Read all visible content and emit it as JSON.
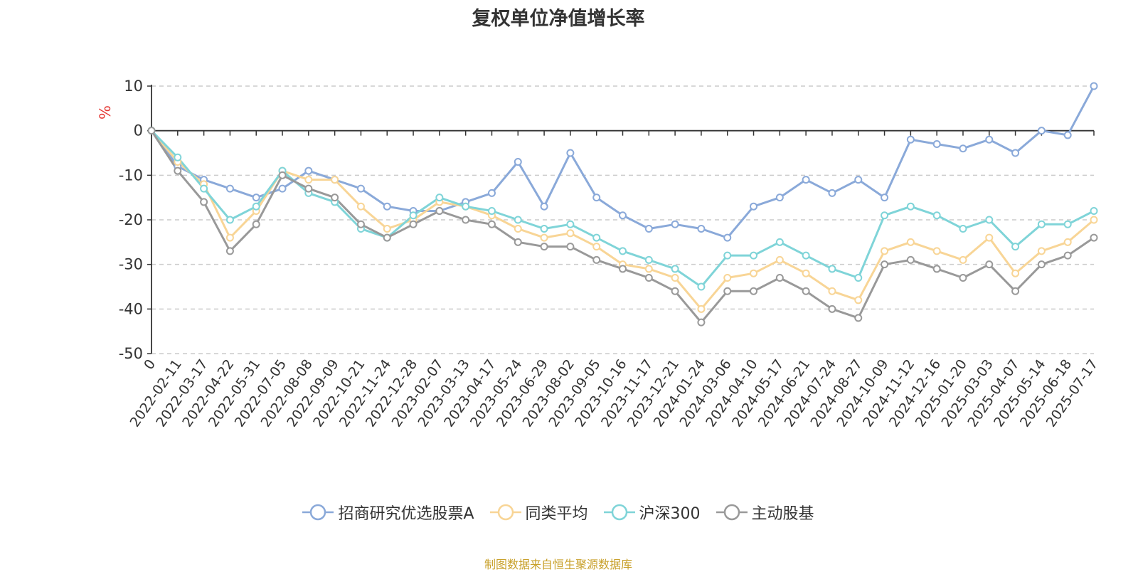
{
  "title": "复权单位净值增长率",
  "source_note": "制图数据来自恒生聚源数据库",
  "chart_data": {
    "type": "line",
    "title": "复权单位净值增长率",
    "ylabel": "%",
    "ylim": [
      -50,
      10
    ],
    "yticks": [
      10,
      0,
      -10,
      -20,
      -30,
      -40,
      -50
    ],
    "y_grid": true,
    "legend_position": "bottom",
    "x_tick_labels": [
      "0",
      "2022-02-11",
      "2022-03-17",
      "2022-04-22",
      "2022-05-31",
      "2022-07-05",
      "2022-08-08",
      "2022-09-09",
      "2022-10-21",
      "2022-11-24",
      "2022-12-28",
      "2023-02-07",
      "2023-03-13",
      "2023-04-17",
      "2023-05-24",
      "2023-06-29",
      "2023-08-02",
      "2023-09-05",
      "2023-10-16",
      "2023-11-17",
      "2023-12-21",
      "2024-01-24",
      "2024-03-06",
      "2024-04-10",
      "2024-05-17",
      "2024-06-21",
      "2024-07-24",
      "2024-08-27",
      "2024-10-09",
      "2024-11-12",
      "2024-12-16",
      "2025-01-20",
      "2025-03-03",
      "2025-04-07",
      "2025-05-14",
      "2025-06-18",
      "2025-07-17"
    ],
    "series": [
      {
        "name": "招商研究优选股票A",
        "color": "#8aa9d9",
        "values": [
          0,
          -8,
          -11,
          -13,
          -15,
          -13,
          -9,
          -11,
          -13,
          -17,
          -18,
          -18,
          -16,
          -14,
          -7,
          -17,
          -5,
          -15,
          -19,
          -22,
          -21,
          -22,
          -24,
          -17,
          -15,
          -11,
          -14,
          -11,
          -15,
          -2,
          -3,
          -4,
          -2,
          -5,
          0,
          -1,
          10
        ]
      },
      {
        "name": "同类平均",
        "color": "#f8d596",
        "values": [
          0,
          -7,
          -12,
          -24,
          -18,
          -9,
          -11,
          -11,
          -17,
          -22,
          -20,
          -16,
          -17,
          -19,
          -22,
          -24,
          -23,
          -26,
          -30,
          -31,
          -33,
          -40,
          -33,
          -32,
          -29,
          -32,
          -36,
          -38,
          -27,
          -25,
          -27,
          -29,
          -24,
          -32,
          -27,
          -25,
          -20
        ]
      },
      {
        "name": "沪深300",
        "color": "#7fd4d8",
        "values": [
          0,
          -6,
          -13,
          -20,
          -17,
          -9,
          -14,
          -16,
          -22,
          -24,
          -19,
          -15,
          -17,
          -18,
          -20,
          -22,
          -21,
          -24,
          -27,
          -29,
          -31,
          -35,
          -28,
          -28,
          -25,
          -28,
          -31,
          -33,
          -19,
          -17,
          -19,
          -22,
          -20,
          -26,
          -21,
          -21,
          -18
        ]
      },
      {
        "name": "主动股基",
        "color": "#999999",
        "values": [
          0,
          -9,
          -16,
          -27,
          -21,
          -10,
          -13,
          -15,
          -21,
          -24,
          -21,
          -18,
          -20,
          -21,
          -25,
          -26,
          -26,
          -29,
          -31,
          -33,
          -36,
          -43,
          -36,
          -36,
          -33,
          -36,
          -40,
          -42,
          -30,
          -29,
          -31,
          -33,
          -30,
          -36,
          -30,
          -28,
          -24
        ]
      }
    ]
  }
}
